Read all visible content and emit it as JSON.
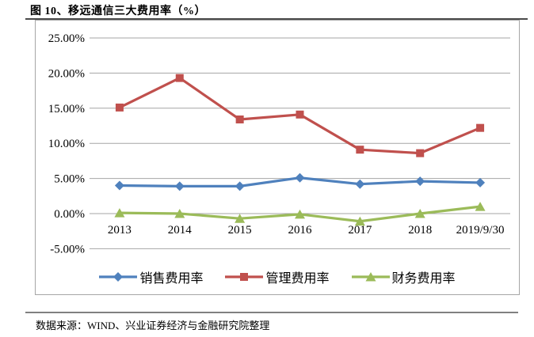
{
  "figure": {
    "title": "图 10、移远通信三大费用率（%）",
    "source": "数据来源：WIND、兴业证券经济与金融研究院整理"
  },
  "chart_data": {
    "type": "line",
    "title": "移远通信三大费用率（%）",
    "categories": [
      "2013",
      "2014",
      "2015",
      "2016",
      "2017",
      "2018",
      "2019/9/30"
    ],
    "series": [
      {
        "name": "销售费用率",
        "marker": "diamond",
        "color": "#4F81BD",
        "values": [
          4.0,
          3.9,
          3.9,
          5.1,
          4.2,
          4.6,
          4.4
        ]
      },
      {
        "name": "管理费用率",
        "marker": "square",
        "color": "#C0504D",
        "values": [
          15.1,
          19.3,
          13.4,
          14.1,
          9.1,
          8.6,
          12.2
        ]
      },
      {
        "name": "财务费用率",
        "marker": "triangle",
        "color": "#9BBB59",
        "values": [
          0.1,
          0.0,
          -0.7,
          -0.1,
          -1.1,
          0.0,
          1.0
        ]
      }
    ],
    "y_axis": {
      "min": -5,
      "max": 25,
      "step": 5,
      "unit": "%"
    },
    "y_ticks": [
      "25.00%",
      "20.00%",
      "15.00%",
      "10.00%",
      "5.00%",
      "0.00%",
      "-5.00%"
    ],
    "grid": true,
    "legend_position": "bottom",
    "styles": {
      "grid_color": "#a6a6a6",
      "box_border": "#a6a6a6",
      "axis_text_color": "#000000",
      "title_rule_color": "#4a4a4a",
      "source_rule_color": "#808080"
    }
  }
}
